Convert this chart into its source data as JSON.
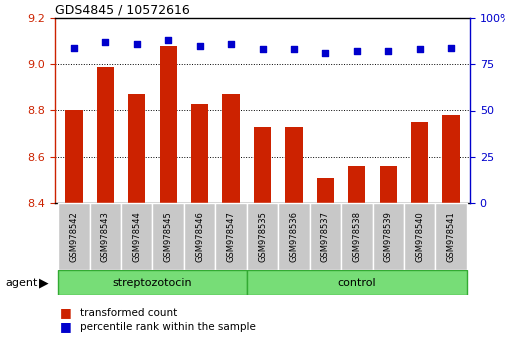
{
  "title": "GDS4845 / 10572616",
  "samples": [
    "GSM978542",
    "GSM978543",
    "GSM978544",
    "GSM978545",
    "GSM978546",
    "GSM978547",
    "GSM978535",
    "GSM978536",
    "GSM978537",
    "GSM978538",
    "GSM978539",
    "GSM978540",
    "GSM978541"
  ],
  "bar_values": [
    8.8,
    8.99,
    8.87,
    9.08,
    8.83,
    8.87,
    8.73,
    8.73,
    8.51,
    8.56,
    8.56,
    8.75,
    8.78
  ],
  "percentile_values": [
    84,
    87,
    86,
    88,
    85,
    86,
    83,
    83,
    81,
    82,
    82,
    83,
    84
  ],
  "bar_color": "#cc2200",
  "dot_color": "#0000cc",
  "ylim_left": [
    8.4,
    9.2
  ],
  "ylim_right": [
    0,
    100
  ],
  "yticks_left": [
    8.4,
    8.6,
    8.8,
    9.0,
    9.2
  ],
  "yticks_right": [
    0,
    25,
    50,
    75,
    100
  ],
  "ytick_labels_right": [
    "0",
    "25",
    "50",
    "75",
    "100%"
  ],
  "legend": [
    {
      "label": "transformed count",
      "color": "#cc2200"
    },
    {
      "label": "percentile rank within the sample",
      "color": "#0000cc"
    }
  ],
  "bar_bottom": 8.4,
  "tick_area_color": "#c8c8c8",
  "group_color": "#77dd77",
  "group_border_color": "#33aa33"
}
